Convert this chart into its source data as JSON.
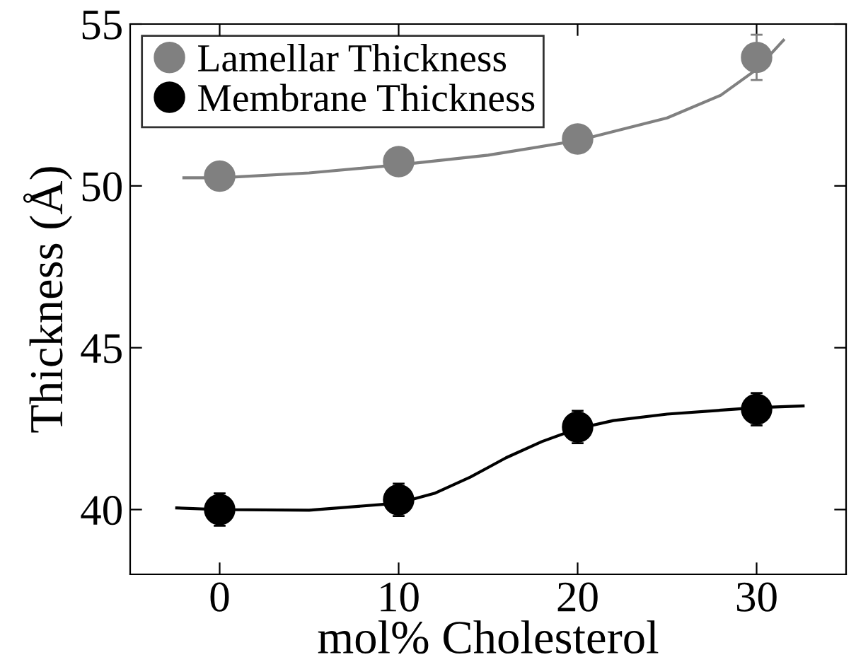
{
  "chart_data": {
    "type": "scatter",
    "xlabel": "mol% Cholesterol",
    "ylabel": "Thickness (Å)",
    "x": [
      0,
      10,
      20,
      30
    ],
    "series": [
      {
        "name": "Lamellar Thickness",
        "color": "#808080",
        "values": [
          50.3,
          50.75,
          51.45,
          53.97
        ],
        "errors": [
          null,
          null,
          null,
          0.7
        ]
      },
      {
        "name": "Membrane Thickness",
        "color": "#000000",
        "values": [
          40.0,
          40.3,
          42.55,
          43.1
        ],
        "errors": [
          0.5,
          0.5,
          0.5,
          0.5
        ]
      },
      {
        "type": "line",
        "marker": "none",
        "color": "#808080",
        "x": [
          -2,
          0,
          5,
          10,
          15,
          20,
          25,
          28,
          30,
          31.5
        ],
        "values": [
          50.25,
          50.25,
          50.4,
          50.65,
          50.95,
          51.4,
          52.1,
          52.8,
          53.6,
          54.5
        ]
      },
      {
        "type": "line",
        "marker": "none",
        "color": "#000000",
        "x": [
          -2.4,
          0,
          5,
          10,
          12,
          14,
          15,
          16,
          18,
          20,
          22,
          25,
          30,
          32.6
        ],
        "values": [
          40.05,
          40.0,
          39.98,
          40.2,
          40.5,
          41.0,
          41.3,
          41.6,
          42.1,
          42.5,
          42.75,
          42.95,
          43.15,
          43.2
        ]
      }
    ],
    "xlim": [
      -5,
      35
    ],
    "xticks": [
      0,
      10,
      20,
      30
    ],
    "ylim": [
      38,
      55
    ],
    "yticks": [
      40,
      45,
      50,
      55
    ],
    "grid": false,
    "legend": "top left",
    "marker": "circle",
    "line_style": "solid"
  }
}
